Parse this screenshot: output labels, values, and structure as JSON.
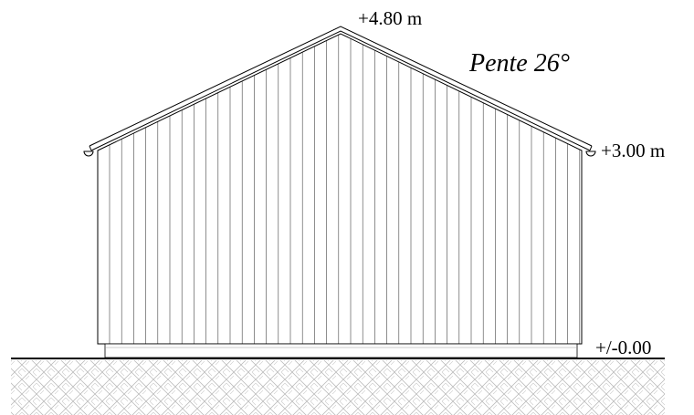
{
  "labels": {
    "ridge": "+4.80 m",
    "slope": "Pente 26°",
    "eaves": "+3.00 m",
    "ground": "+/-0.00"
  }
}
